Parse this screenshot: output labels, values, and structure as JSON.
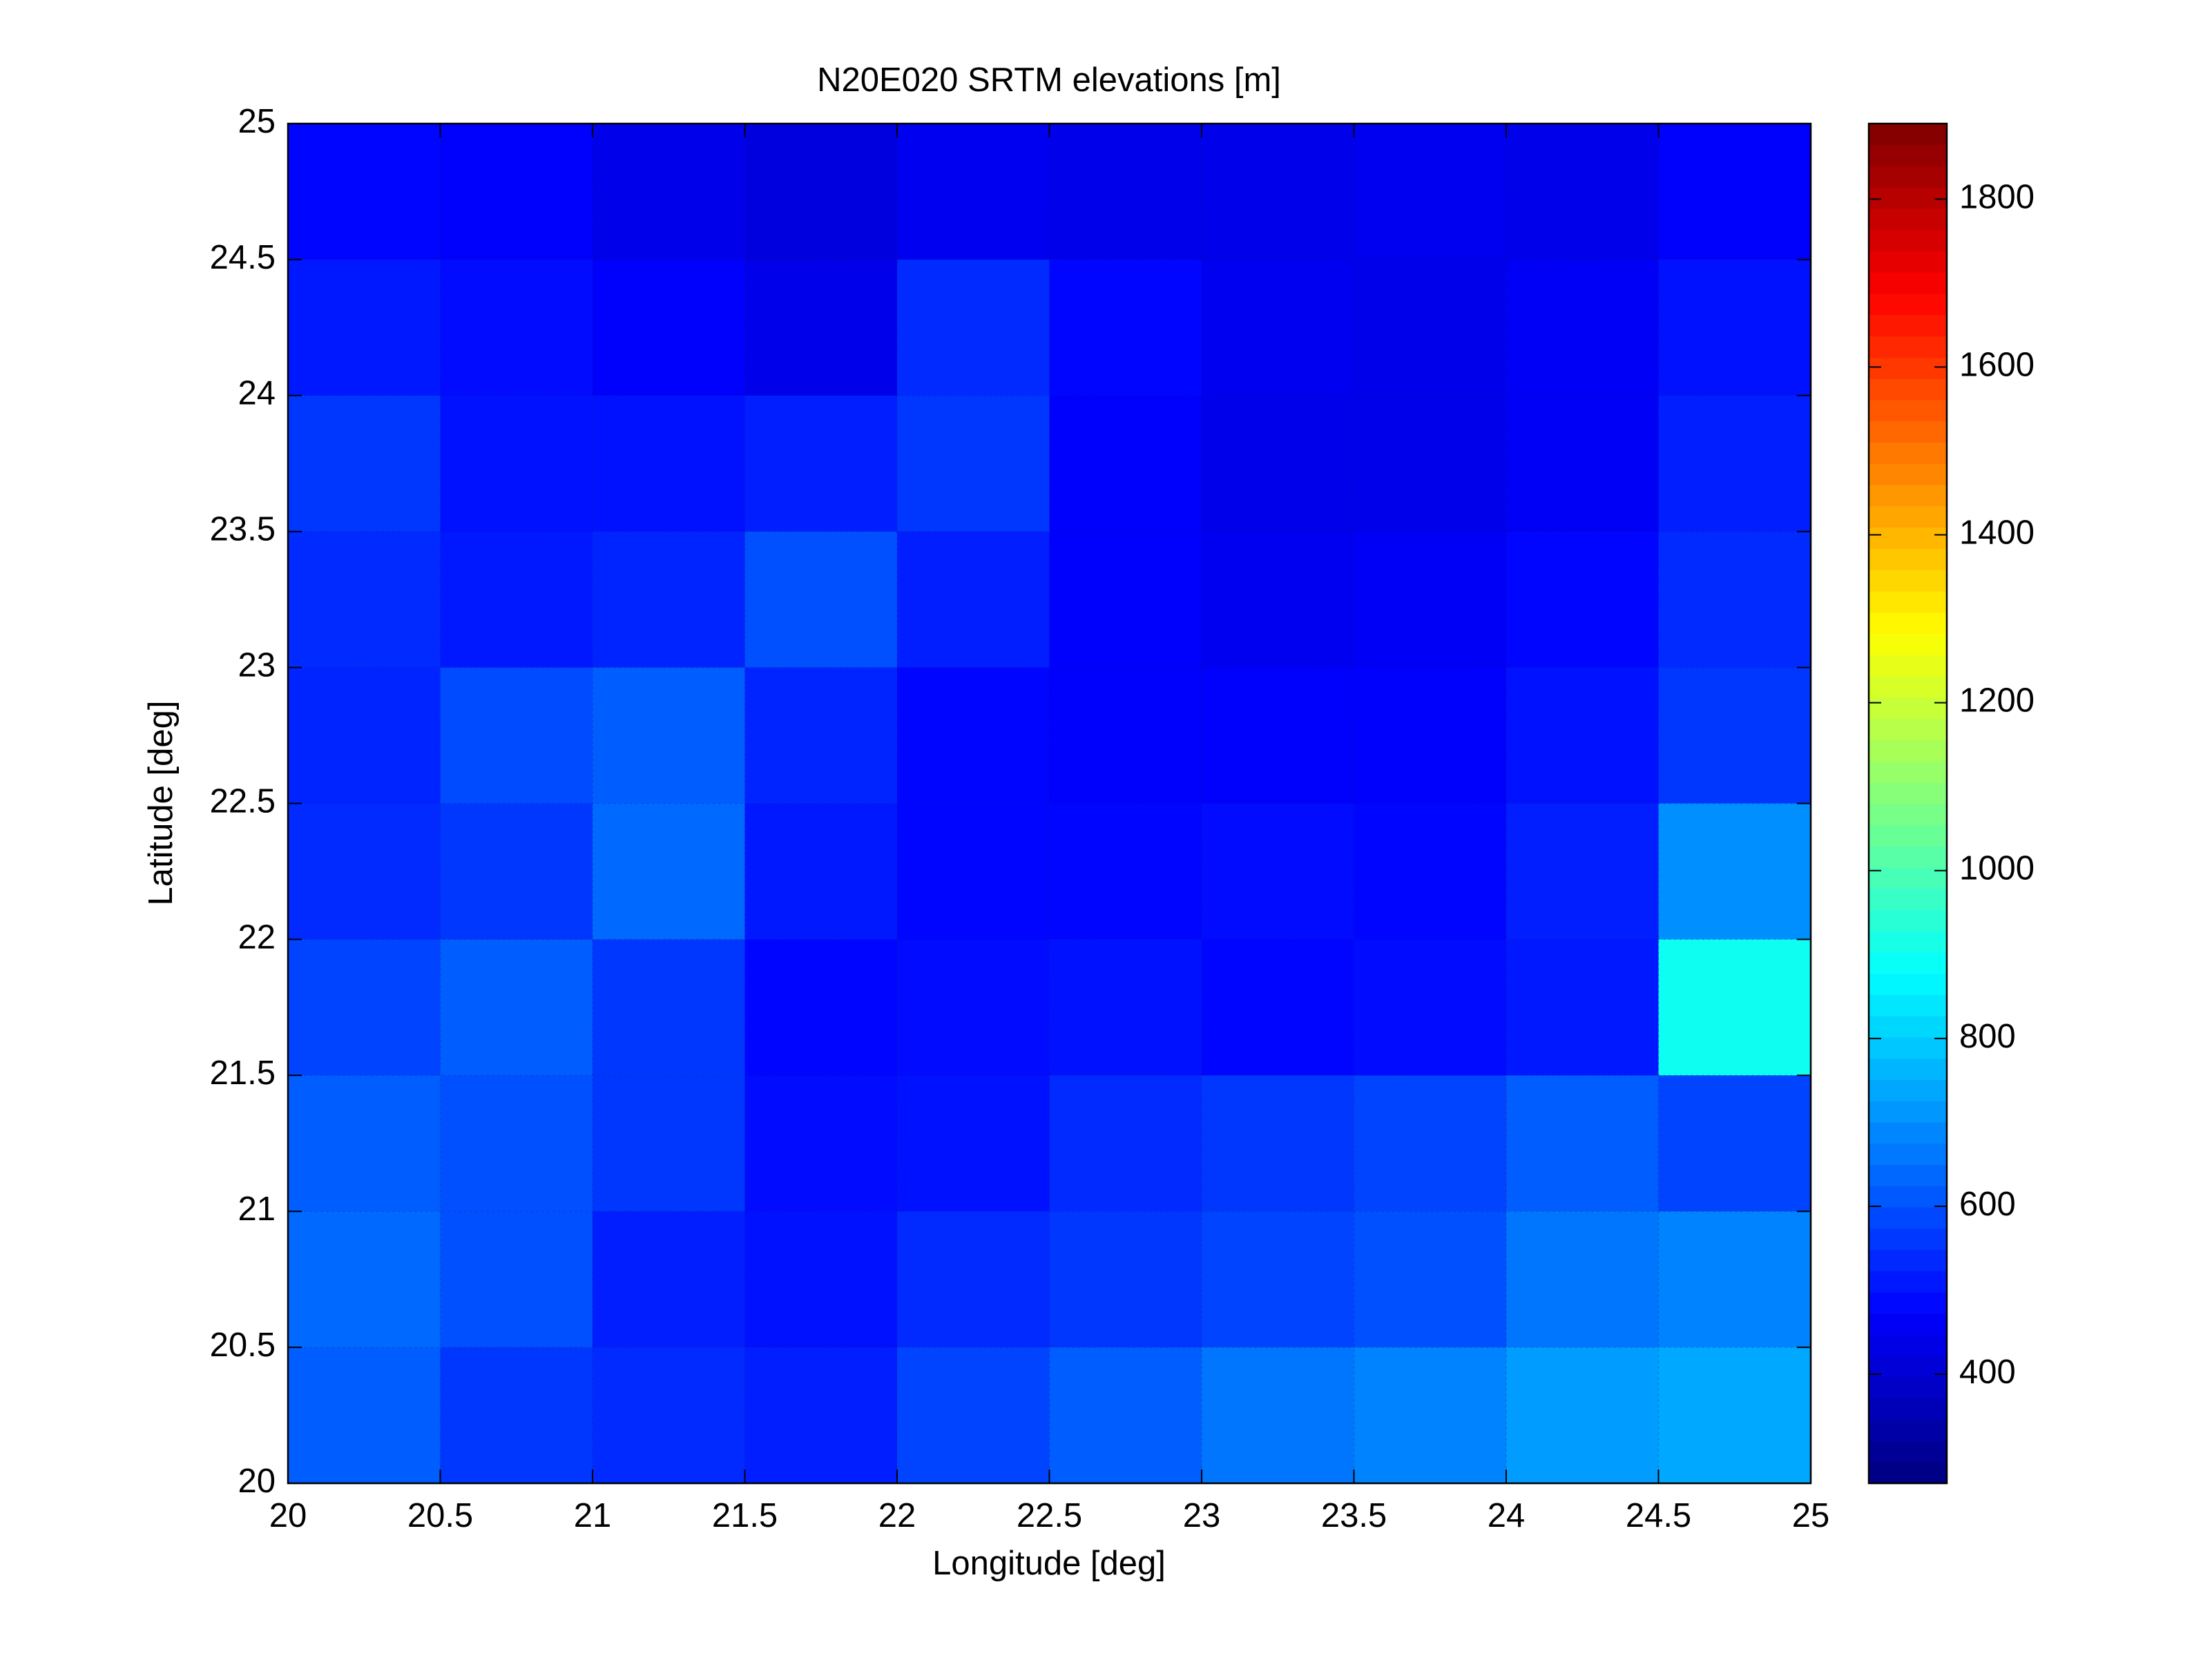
{
  "chart_data": {
    "type": "heatmap",
    "title": "N20E020 SRTM elevations [m]",
    "x_label": "Longitude [deg]",
    "y_label": "Latitude [deg]",
    "colormap": "jet",
    "grid": true,
    "xlim": [
      20,
      25
    ],
    "ylim": [
      20,
      25
    ],
    "xticks": [
      20,
      20.5,
      21,
      21.5,
      22,
      22.5,
      23,
      23.5,
      24,
      24.5,
      25
    ],
    "yticks": [
      20,
      20.5,
      21,
      21.5,
      22,
      22.5,
      23,
      23.5,
      24,
      24.5,
      25
    ],
    "x": [
      20.25,
      20.75,
      21.25,
      21.75,
      22.25,
      22.75,
      23.25,
      23.75,
      24.25,
      24.75
    ],
    "y": [
      24.75,
      24.25,
      23.75,
      23.25,
      22.75,
      22.25,
      21.75,
      21.25,
      20.75,
      20.25
    ],
    "values": [
      [
        480,
        470,
        440,
        420,
        450,
        440,
        440,
        450,
        440,
        470
      ],
      [
        510,
        490,
        470,
        440,
        540,
        480,
        450,
        440,
        460,
        500
      ],
      [
        560,
        500,
        500,
        520,
        560,
        470,
        440,
        440,
        460,
        520
      ],
      [
        540,
        510,
        530,
        600,
        520,
        470,
        450,
        460,
        480,
        540
      ],
      [
        530,
        590,
        620,
        530,
        480,
        470,
        470,
        470,
        500,
        560
      ],
      [
        540,
        560,
        640,
        510,
        480,
        480,
        490,
        480,
        520,
        700
      ],
      [
        580,
        620,
        560,
        480,
        490,
        500,
        480,
        490,
        510,
        900
      ],
      [
        620,
        600,
        560,
        490,
        500,
        540,
        560,
        580,
        620,
        580
      ],
      [
        640,
        600,
        520,
        500,
        540,
        560,
        580,
        600,
        660,
        680
      ],
      [
        620,
        560,
        540,
        520,
        580,
        620,
        660,
        680,
        720,
        740
      ]
    ],
    "clim": [
      270,
      1890
    ],
    "cticks": [
      400,
      600,
      800,
      1000,
      1200,
      1400,
      1600,
      1800
    ]
  }
}
